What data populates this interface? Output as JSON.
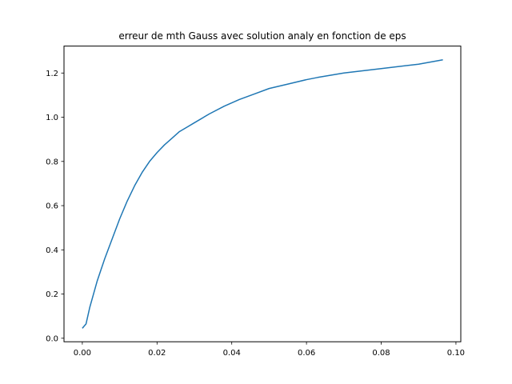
{
  "chart_data": {
    "type": "line",
    "title": "erreur de mth Gauss avec solution analy en fonction de eps",
    "xlabel": "",
    "ylabel": "",
    "xlim": [
      -0.0049,
      0.1013
    ],
    "ylim": [
      -0.0159,
      1.3219
    ],
    "x_ticks": [
      0.0,
      0.02,
      0.04,
      0.06,
      0.08,
      0.1
    ],
    "x_tick_labels": [
      "0.00",
      "0.02",
      "0.04",
      "0.06",
      "0.08",
      "0.10"
    ],
    "y_ticks": [
      0.0,
      0.2,
      0.4,
      0.6,
      0.8,
      1.0,
      1.2
    ],
    "y_tick_labels": [
      "0.0",
      "0.2",
      "0.4",
      "0.6",
      "0.8",
      "1.0",
      "1.2"
    ],
    "grid": false,
    "series": [
      {
        "color": "#1f77b4",
        "x": [
          0.0,
          0.001,
          0.002,
          0.003,
          0.004,
          0.005,
          0.006,
          0.008,
          0.01,
          0.012,
          0.014,
          0.016,
          0.018,
          0.02,
          0.022,
          0.024,
          0.026,
          0.028,
          0.03,
          0.034,
          0.038,
          0.042,
          0.046,
          0.05,
          0.055,
          0.06,
          0.063,
          0.07,
          0.08,
          0.09,
          0.0965
        ],
        "y": [
          0.045,
          0.065,
          0.14,
          0.2,
          0.26,
          0.31,
          0.36,
          0.45,
          0.54,
          0.62,
          0.69,
          0.75,
          0.8,
          0.84,
          0.875,
          0.905,
          0.935,
          0.955,
          0.975,
          1.015,
          1.05,
          1.08,
          1.105,
          1.13,
          1.15,
          1.17,
          1.18,
          1.2,
          1.22,
          1.24,
          1.26
        ]
      }
    ]
  }
}
